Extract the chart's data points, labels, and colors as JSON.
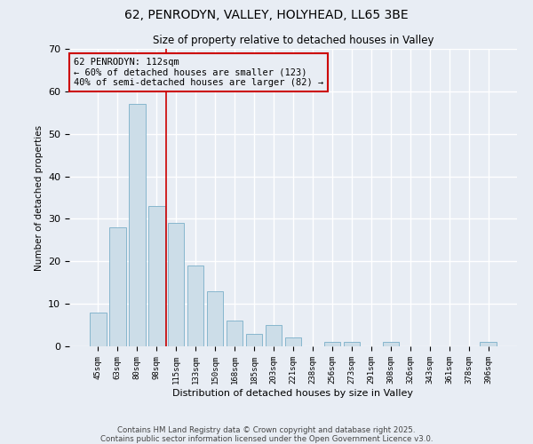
{
  "title1": "62, PENRODYN, VALLEY, HOLYHEAD, LL65 3BE",
  "title2": "Size of property relative to detached houses in Valley",
  "xlabel": "Distribution of detached houses by size in Valley",
  "ylabel": "Number of detached properties",
  "categories": [
    "45sqm",
    "63sqm",
    "80sqm",
    "98sqm",
    "115sqm",
    "133sqm",
    "150sqm",
    "168sqm",
    "185sqm",
    "203sqm",
    "221sqm",
    "238sqm",
    "256sqm",
    "273sqm",
    "291sqm",
    "308sqm",
    "326sqm",
    "343sqm",
    "361sqm",
    "378sqm",
    "396sqm"
  ],
  "values": [
    8,
    28,
    57,
    33,
    29,
    19,
    13,
    6,
    3,
    5,
    2,
    0,
    1,
    1,
    0,
    1,
    0,
    0,
    0,
    0,
    1
  ],
  "bar_color": "#ccdde8",
  "bar_edge_color": "#7aafc8",
  "background_color": "#e8edf4",
  "grid_color": "#ffffff",
  "vline_index": 3.5,
  "vline_color": "#cc0000",
  "annotation_text": "62 PENRODYN: 112sqm\n← 60% of detached houses are smaller (123)\n40% of semi-detached houses are larger (82) →",
  "annotation_box_color": "#cc0000",
  "ylim": [
    0,
    70
  ],
  "yticks": [
    0,
    10,
    20,
    30,
    40,
    50,
    60,
    70
  ],
  "footer": "Contains HM Land Registry data © Crown copyright and database right 2025.\nContains public sector information licensed under the Open Government Licence v3.0."
}
